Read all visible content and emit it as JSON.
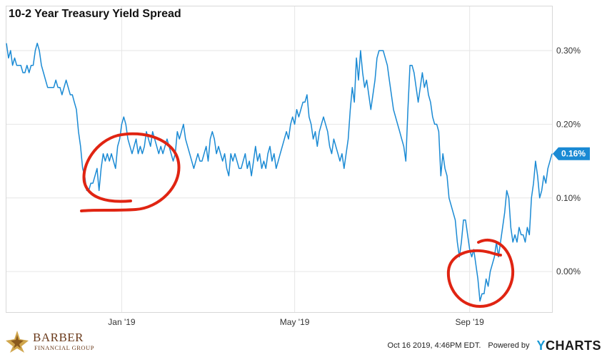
{
  "title": "10-2 Year Treasury Yield Spread",
  "footer": {
    "brand_name": "BARBER",
    "brand_sub": "FINANCIAL GROUP",
    "timestamp": "Oct 16 2019, 4:46PM EDT.",
    "powered_by": "Powered by",
    "ycharts_y": "Y",
    "ycharts_rest": "CHARTS"
  },
  "colors": {
    "line": "#1a8ad4",
    "annotation": "#e02412",
    "grid": "#e6e6e6",
    "badge": "#1a8ad4"
  },
  "chart_data": {
    "type": "line",
    "title": "10-2 Year Treasury Yield Spread",
    "x_ticks": [
      {
        "label": "Jan '19",
        "index": 56
      },
      {
        "label": "May '19",
        "index": 140
      },
      {
        "label": "Sep '19",
        "index": 225
      }
    ],
    "y_ticks": [
      {
        "label": "0.00%",
        "value": 0.0
      },
      {
        "label": "0.10%",
        "value": 0.1
      },
      {
        "label": "0.20%",
        "value": 0.2
      },
      {
        "label": "0.30%",
        "value": 0.3
      }
    ],
    "ylim": [
      -0.055,
      0.36
    ],
    "grid": true,
    "last_value_label": "0.16%",
    "series": [
      {
        "values": [
          0.31,
          0.29,
          0.3,
          0.28,
          0.29,
          0.28,
          0.28,
          0.28,
          0.27,
          0.27,
          0.28,
          0.27,
          0.28,
          0.28,
          0.3,
          0.31,
          0.3,
          0.28,
          0.27,
          0.26,
          0.25,
          0.25,
          0.25,
          0.25,
          0.26,
          0.25,
          0.25,
          0.24,
          0.25,
          0.26,
          0.25,
          0.24,
          0.24,
          0.23,
          0.22,
          0.19,
          0.17,
          0.14,
          0.13,
          0.11,
          0.11,
          0.12,
          0.12,
          0.13,
          0.14,
          0.11,
          0.14,
          0.16,
          0.15,
          0.16,
          0.15,
          0.16,
          0.15,
          0.14,
          0.17,
          0.18,
          0.2,
          0.21,
          0.2,
          0.18,
          0.17,
          0.16,
          0.17,
          0.18,
          0.16,
          0.17,
          0.16,
          0.17,
          0.19,
          0.18,
          0.17,
          0.19,
          0.18,
          0.17,
          0.16,
          0.17,
          0.16,
          0.17,
          0.18,
          0.17,
          0.16,
          0.15,
          0.16,
          0.19,
          0.18,
          0.19,
          0.2,
          0.18,
          0.17,
          0.16,
          0.15,
          0.14,
          0.15,
          0.16,
          0.15,
          0.15,
          0.16,
          0.17,
          0.15,
          0.18,
          0.19,
          0.18,
          0.16,
          0.17,
          0.16,
          0.15,
          0.16,
          0.14,
          0.13,
          0.16,
          0.15,
          0.16,
          0.15,
          0.14,
          0.14,
          0.15,
          0.16,
          0.14,
          0.15,
          0.13,
          0.15,
          0.17,
          0.15,
          0.16,
          0.14,
          0.15,
          0.14,
          0.16,
          0.17,
          0.15,
          0.16,
          0.14,
          0.15,
          0.16,
          0.17,
          0.18,
          0.19,
          0.18,
          0.2,
          0.21,
          0.2,
          0.22,
          0.21,
          0.22,
          0.23,
          0.23,
          0.24,
          0.21,
          0.2,
          0.18,
          0.19,
          0.17,
          0.19,
          0.2,
          0.21,
          0.2,
          0.19,
          0.17,
          0.16,
          0.18,
          0.17,
          0.16,
          0.15,
          0.16,
          0.14,
          0.16,
          0.18,
          0.22,
          0.25,
          0.23,
          0.29,
          0.26,
          0.3,
          0.27,
          0.25,
          0.26,
          0.24,
          0.22,
          0.24,
          0.26,
          0.29,
          0.3,
          0.3,
          0.3,
          0.29,
          0.28,
          0.26,
          0.24,
          0.22,
          0.21,
          0.2,
          0.19,
          0.18,
          0.17,
          0.15,
          0.22,
          0.28,
          0.28,
          0.27,
          0.25,
          0.23,
          0.25,
          0.27,
          0.25,
          0.26,
          0.24,
          0.23,
          0.21,
          0.2,
          0.2,
          0.19,
          0.13,
          0.16,
          0.14,
          0.13,
          0.1,
          0.09,
          0.08,
          0.07,
          0.04,
          0.02,
          0.04,
          0.07,
          0.07,
          0.05,
          0.03,
          0.02,
          0.03,
          0.01,
          -0.01,
          -0.04,
          -0.03,
          -0.03,
          -0.01,
          -0.02,
          0.0,
          0.01,
          0.02,
          0.04,
          0.02,
          0.04,
          0.06,
          0.08,
          0.11,
          0.1,
          0.06,
          0.04,
          0.05,
          0.04,
          0.06,
          0.05,
          0.05,
          0.04,
          0.06,
          0.05,
          0.1,
          0.12,
          0.15,
          0.13,
          0.1,
          0.11,
          0.13,
          0.12,
          0.14,
          0.15,
          0.16
        ]
      }
    ]
  }
}
